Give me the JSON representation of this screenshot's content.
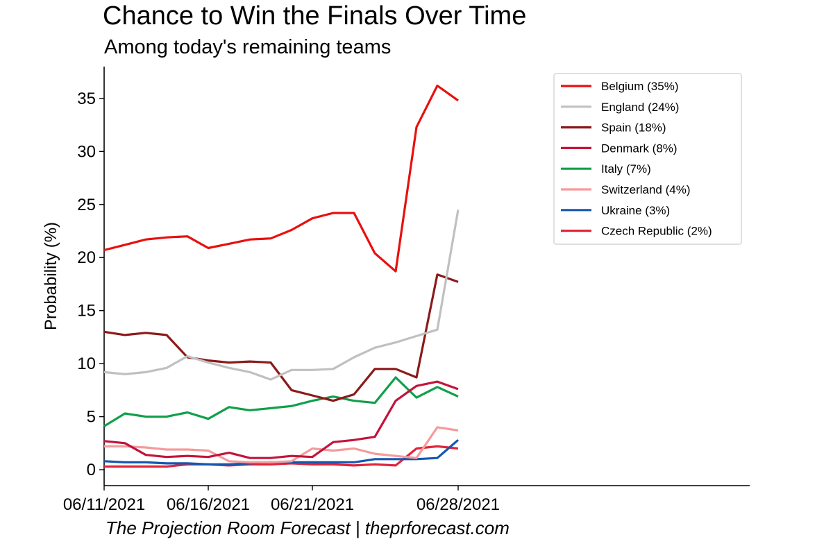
{
  "title": "Chance to Win the Finals Over Time",
  "subtitle": "Among today's remaining teams",
  "credit": "The Projection Room Forecast | theprforecast.com",
  "chart_data": {
    "type": "line",
    "ylabel": "Probability (%)",
    "xlabel": "",
    "ylim": [
      -1.5,
      38
    ],
    "yticks": [
      0,
      5,
      10,
      15,
      20,
      25,
      30,
      35
    ],
    "xlim": [
      "2021-06-11",
      "2021-07-12"
    ],
    "xticks": [
      {
        "date": "2021-06-11",
        "label": "06/11/2021"
      },
      {
        "date": "2021-06-16",
        "label": "06/16/2021"
      },
      {
        "date": "2021-06-21",
        "label": "06/21/2021"
      },
      {
        "date": "2021-06-28",
        "label": "06/28/2021"
      }
    ],
    "grid": false,
    "legend_position": "upper-right",
    "x": [
      "2021-06-11",
      "2021-06-12",
      "2021-06-13",
      "2021-06-14",
      "2021-06-15",
      "2021-06-16",
      "2021-06-17",
      "2021-06-18",
      "2021-06-19",
      "2021-06-20",
      "2021-06-21",
      "2021-06-22",
      "2021-06-23",
      "2021-06-24",
      "2021-06-25",
      "2021-06-26",
      "2021-06-27",
      "2021-06-28",
      "2021-06-29",
      "2021-06-30"
    ],
    "series": [
      {
        "name": "Belgium (35%)",
        "color": "#e8100d",
        "values": [
          20.7,
          21.2,
          21.7,
          21.9,
          22.0,
          20.9,
          21.3,
          21.7,
          21.8,
          22.6,
          23.7,
          24.2,
          24.2,
          20.4,
          18.7,
          32.3,
          36.2,
          34.8,
          null,
          null
        ]
      },
      {
        "name": "England (24%)",
        "color": "#c0c0c0",
        "values": [
          9.2,
          9.0,
          9.2,
          9.6,
          10.7,
          10.1,
          9.6,
          9.2,
          8.5,
          9.4,
          9.4,
          9.5,
          10.6,
          11.5,
          12.0,
          12.6,
          13.2,
          24.5,
          null,
          null
        ]
      },
      {
        "name": "Spain (18%)",
        "color": "#8b1a1a",
        "values": [
          13.0,
          12.7,
          12.9,
          12.7,
          10.6,
          10.3,
          10.1,
          10.2,
          10.1,
          7.5,
          7.0,
          6.5,
          7.1,
          9.5,
          9.5,
          8.7,
          18.4,
          17.7,
          null,
          null
        ]
      },
      {
        "name": "Denmark (8%)",
        "color": "#c2143c",
        "values": [
          2.7,
          2.5,
          1.4,
          1.2,
          1.3,
          1.2,
          1.6,
          1.1,
          1.1,
          1.3,
          1.2,
          2.6,
          2.8,
          3.1,
          6.5,
          7.9,
          8.3,
          7.6,
          null,
          null
        ]
      },
      {
        "name": "Italy (7%)",
        "color": "#10a04a",
        "values": [
          4.1,
          5.3,
          5.0,
          5.0,
          5.4,
          4.8,
          5.9,
          5.6,
          5.8,
          6.0,
          6.5,
          6.9,
          6.5,
          6.3,
          8.7,
          6.8,
          7.8,
          6.9,
          null,
          null
        ]
      },
      {
        "name": "Switzerland (4%)",
        "color": "#f59b9b",
        "values": [
          2.2,
          2.2,
          2.1,
          1.9,
          1.9,
          1.8,
          0.8,
          0.7,
          0.7,
          0.8,
          2.0,
          1.8,
          2.0,
          1.5,
          1.3,
          1.1,
          4.0,
          3.7,
          null,
          null
        ]
      },
      {
        "name": "Ukraine (3%)",
        "color": "#1656b0",
        "values": [
          0.8,
          0.7,
          0.7,
          0.6,
          0.6,
          0.5,
          0.5,
          0.6,
          0.7,
          0.7,
          0.7,
          0.7,
          0.7,
          1.0,
          1.0,
          1.0,
          1.1,
          2.8,
          null,
          null
        ]
      },
      {
        "name": "Czech Republic (2%)",
        "color": "#e0243a",
        "values": [
          0.3,
          0.3,
          0.3,
          0.3,
          0.5,
          0.5,
          0.4,
          0.5,
          0.5,
          0.6,
          0.5,
          0.5,
          0.4,
          0.5,
          0.4,
          2.0,
          2.2,
          2.0,
          null,
          null
        ]
      }
    ]
  }
}
